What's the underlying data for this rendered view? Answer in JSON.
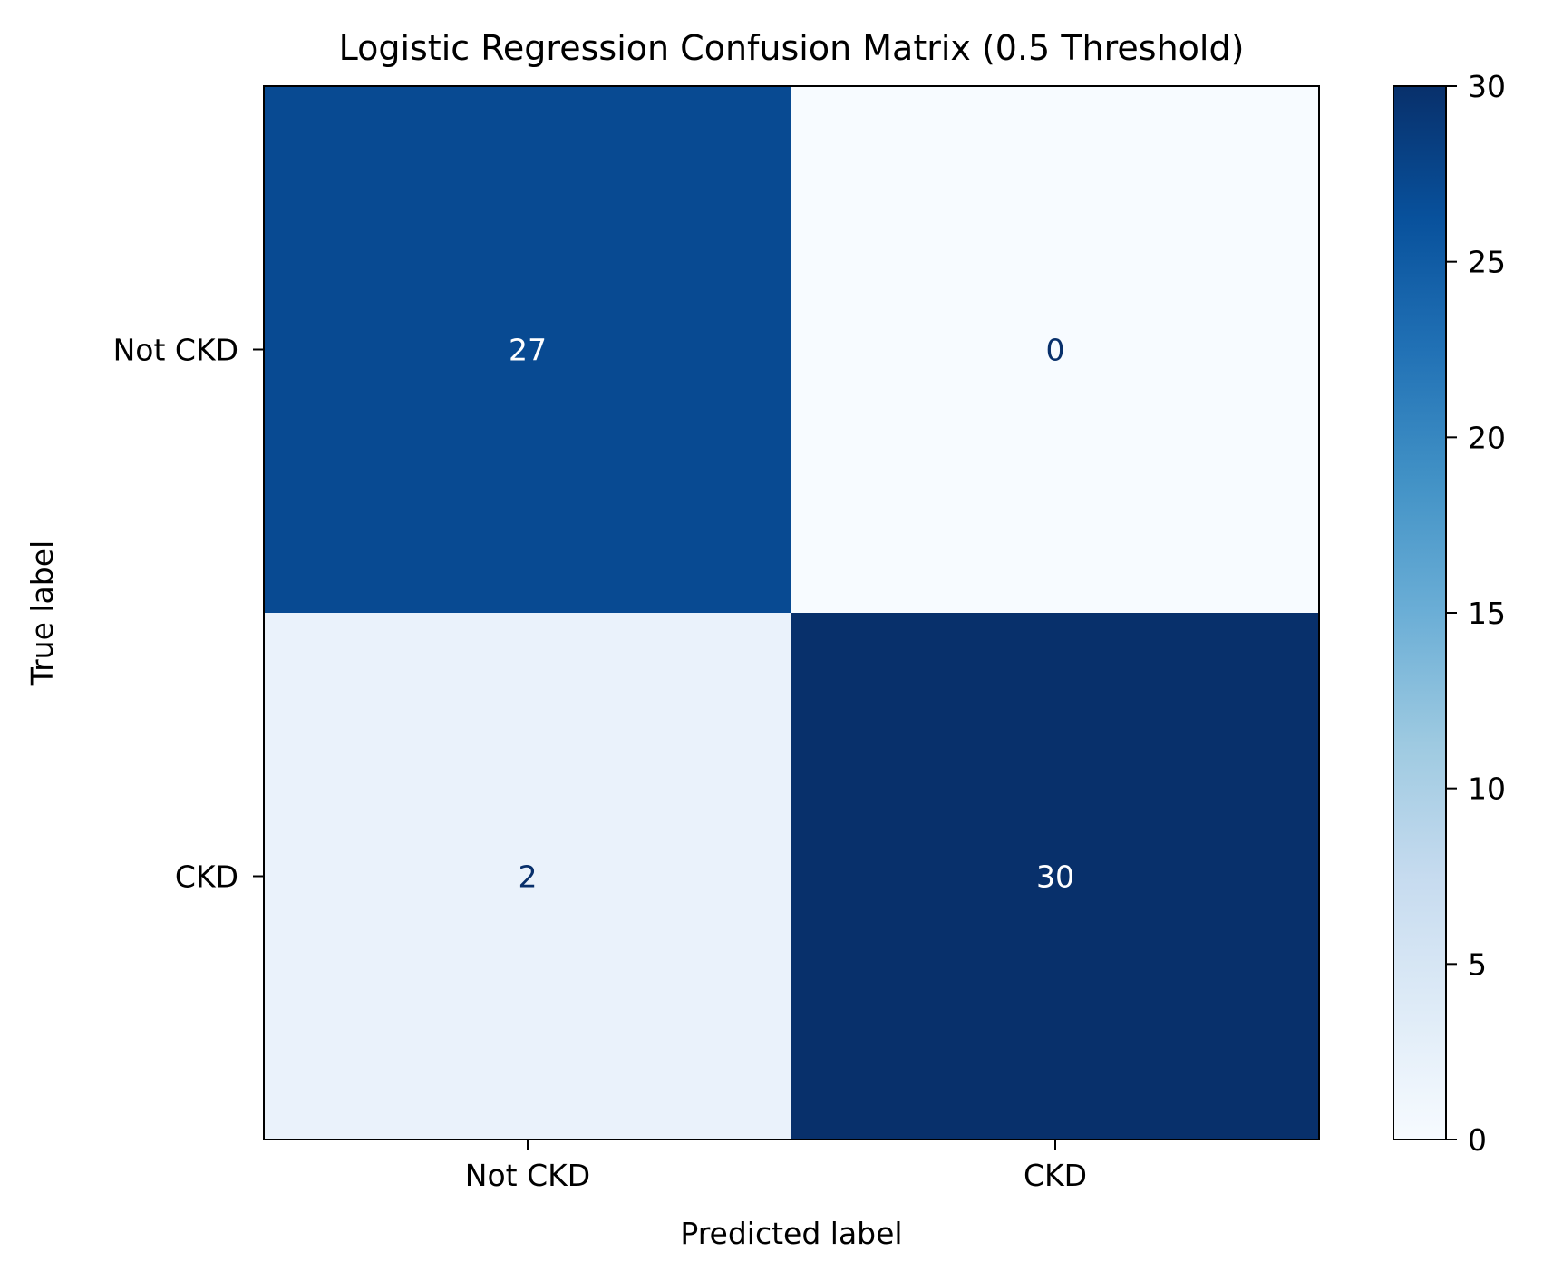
{
  "chart_data": {
    "type": "heatmap",
    "title": "Logistic Regression Confusion Matrix (0.5 Threshold)",
    "xlabel": "Predicted label",
    "ylabel": "True label",
    "x_categories": [
      "Not CKD",
      "CKD"
    ],
    "y_categories": [
      "Not CKD",
      "CKD"
    ],
    "values": [
      [
        27,
        0
      ],
      [
        2,
        30
      ]
    ],
    "colormap": "Blues",
    "clim": [
      0,
      30
    ],
    "colorbar_ticks": [
      0,
      5,
      10,
      15,
      20,
      25,
      30
    ],
    "grid": false
  }
}
